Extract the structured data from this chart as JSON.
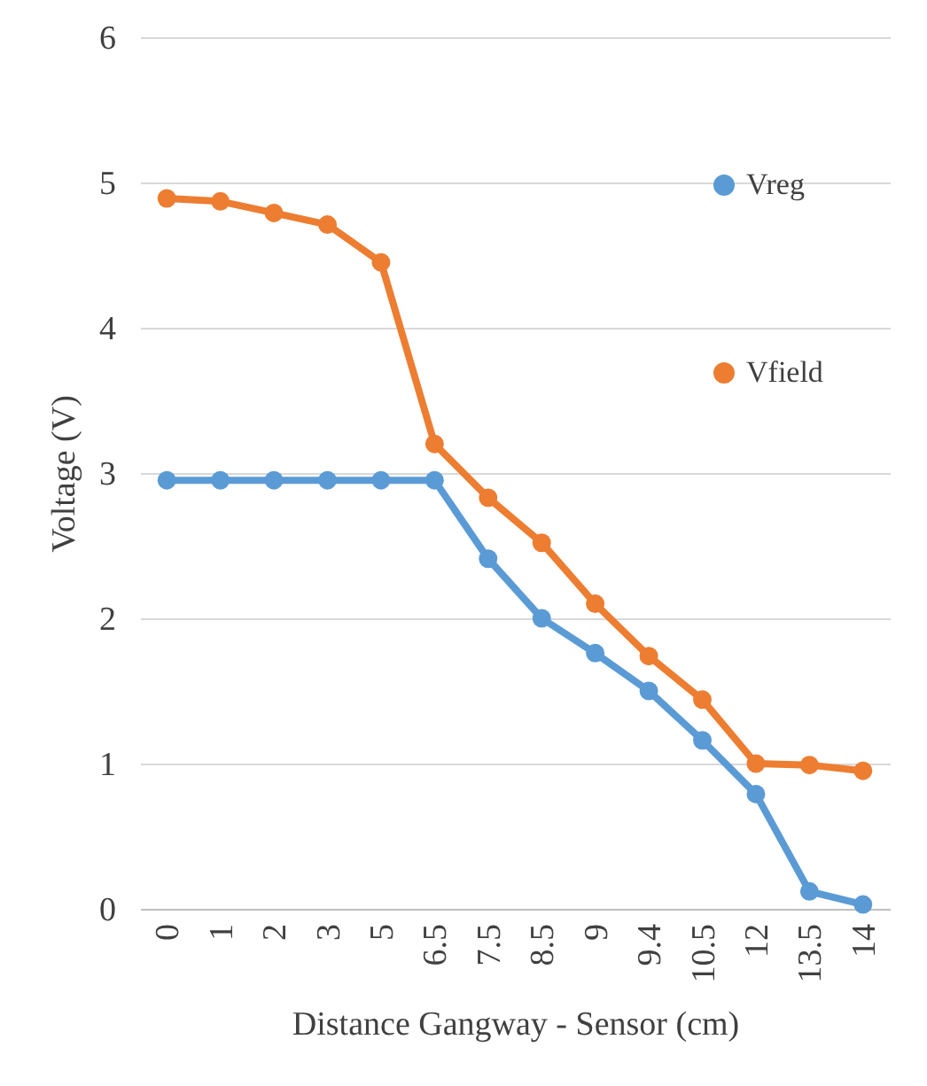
{
  "chart_data": {
    "type": "line",
    "xlabel": "Distance Gangway - Sensor (cm)",
    "ylabel": "Voltage (V)",
    "categories": [
      "0",
      "1",
      "2",
      "3",
      "5",
      "6.5",
      "7.5",
      "8.5",
      "9",
      "9.4",
      "10.5",
      "12",
      "13.5",
      "14"
    ],
    "series": [
      {
        "name": "Vreg",
        "color": "#5b9bd5",
        "values": [
          2.95,
          2.95,
          2.95,
          2.95,
          2.95,
          2.95,
          2.41,
          2.0,
          1.76,
          1.5,
          1.16,
          0.79,
          0.12,
          0.03
        ]
      },
      {
        "name": "Vfield",
        "color": "#ed7d31",
        "values": [
          4.89,
          4.87,
          4.79,
          4.71,
          4.45,
          3.2,
          2.83,
          2.52,
          2.1,
          1.74,
          1.44,
          1.0,
          0.99,
          0.95
        ]
      }
    ],
    "ylim": [
      0,
      6
    ],
    "yticks": [
      0,
      1,
      2,
      3,
      4,
      5,
      6
    ],
    "grid": "y",
    "legend": "right",
    "marker": "circle",
    "line_style": "solid"
  }
}
